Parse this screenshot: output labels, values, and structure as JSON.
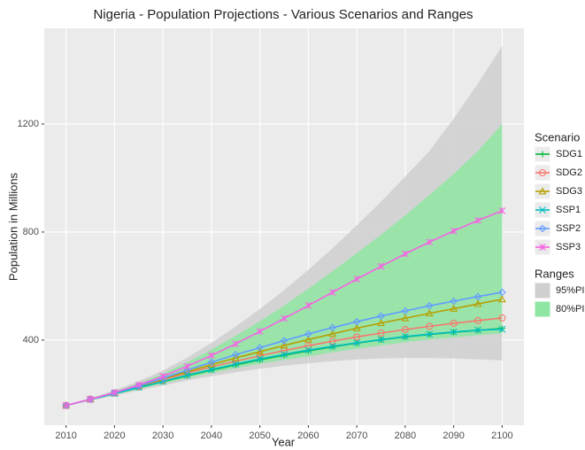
{
  "chart_data": {
    "type": "line",
    "title": "Nigeria - Population Projections - Various Scenarios and Ranges",
    "x_label": "Year",
    "y_label": "Population in Millions",
    "x": [
      2010,
      2015,
      2020,
      2025,
      2030,
      2035,
      2040,
      2045,
      2050,
      2055,
      2060,
      2065,
      2070,
      2075,
      2080,
      2085,
      2090,
      2095,
      2100
    ],
    "xlim": [
      2005.5,
      2104.5
    ],
    "xticks": [
      2010,
      2020,
      2030,
      2040,
      2050,
      2060,
      2070,
      2080,
      2090,
      2100
    ],
    "ylim": [
      85,
      1554
    ],
    "yticks": [
      400,
      800,
      1200
    ],
    "grid": true,
    "legend_title": "Scenario",
    "bands_legend_title": "Ranges",
    "bands": [
      {
        "name": "95%PI",
        "color": "#cfcfcf",
        "lower": [
          158,
          176,
          195,
          214,
          232,
          250,
          266,
          281,
          294,
          305,
          314,
          322,
          328,
          332,
          334,
          334,
          332,
          329,
          325
        ],
        "upper": [
          158,
          185,
          214,
          248,
          288,
          335,
          390,
          450,
          515,
          585,
          660,
          740,
          825,
          912,
          1005,
          1100,
          1220,
          1350,
          1489
        ]
      },
      {
        "name": "80%PI",
        "color": "#8fe6a2",
        "lower": [
          158,
          178,
          198,
          219,
          239,
          259,
          278,
          296,
          312,
          327,
          340,
          355,
          368,
          380,
          392,
          402,
          410,
          418,
          425
        ],
        "upper": [
          158,
          183,
          210,
          240,
          276,
          318,
          365,
          416,
          470,
          528,
          590,
          655,
          722,
          790,
          862,
          937,
          1015,
          1100,
          1200
        ]
      }
    ],
    "series": [
      {
        "name": "SDG1",
        "color": "#00BA38",
        "marker": "plus",
        "values": [
          158,
          180,
          202,
          224,
          246,
          268,
          289,
          308,
          327,
          344,
          360,
          375,
          389,
          401,
          412,
          421,
          429,
          436,
          443
        ]
      },
      {
        "name": "SDG2",
        "color": "#F8766D",
        "marker": "circle",
        "values": [
          158,
          181,
          204,
          228,
          253,
          278,
          301,
          322,
          342,
          361,
          379,
          396,
          412,
          426,
          439,
          451,
          462,
          472,
          482
        ]
      },
      {
        "name": "SDG3",
        "color": "#B79F00",
        "marker": "triangle",
        "values": [
          158,
          181,
          204,
          229,
          256,
          283,
          309,
          334,
          357,
          380,
          402,
          423,
          444,
          463,
          481,
          499,
          516,
          534,
          551
        ]
      },
      {
        "name": "SSP1",
        "color": "#00BFC4",
        "marker": "cross",
        "values": [
          158,
          180,
          202,
          225,
          247,
          270,
          291,
          311,
          330,
          347,
          363,
          377,
          390,
          402,
          413,
          422,
          430,
          437,
          440
        ]
      },
      {
        "name": "SSP2",
        "color": "#619CFF",
        "marker": "diamond",
        "values": [
          158,
          181,
          205,
          231,
          259,
          289,
          318,
          346,
          372,
          398,
          423,
          446,
          468,
          489,
          508,
          527,
          544,
          561,
          577
        ]
      },
      {
        "name": "SSP3",
        "color": "#F564E3",
        "marker": "star",
        "values": [
          158,
          181,
          206,
          234,
          266,
          303,
          343,
          386,
          432,
          480,
          528,
          577,
          626,
          673,
          719,
          763,
          804,
          843,
          879
        ]
      }
    ]
  }
}
